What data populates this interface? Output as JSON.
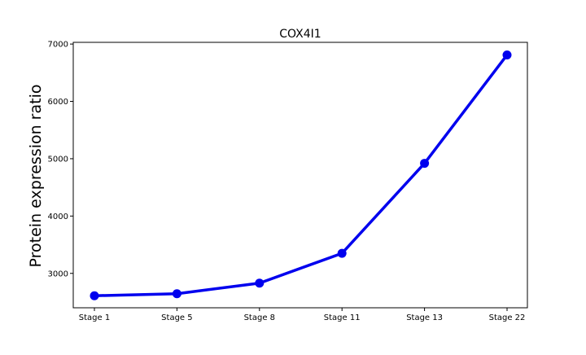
{
  "chart_data": {
    "type": "line",
    "title": "COX4I1",
    "xlabel": "",
    "ylabel": "Protein expression ratio",
    "categories": [
      "Stage 1",
      "Stage 5",
      "Stage 8",
      "Stage 11",
      "Stage 13",
      "Stage 22"
    ],
    "series": [
      {
        "values": [
          2610,
          2645,
          2830,
          3350,
          4920,
          6810
        ],
        "color": "#0000ee"
      }
    ],
    "ylim": [
      2400,
      7030
    ],
    "yticks": [
      3000,
      4000,
      5000,
      6000,
      7000
    ],
    "grid": false,
    "legend": "none"
  }
}
